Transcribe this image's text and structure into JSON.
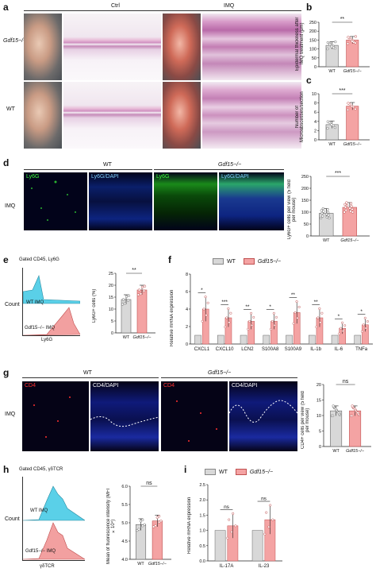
{
  "panels": {
    "a": {
      "label": "a",
      "ctrl": "Ctrl",
      "imq": "IMQ",
      "row1": "Gdf15−/−",
      "row2": "WT"
    },
    "b": {
      "label": "b",
      "ylabel": "Epidermal thickness after IMQ treatment (μm)",
      "sig": "**",
      "x1": "WT",
      "x2": "Gdf15−/−",
      "ticks": [
        "0",
        "50",
        "100",
        "150",
        "200",
        "250"
      ]
    },
    "c": {
      "label": "c",
      "ylabel": "Number of Microabscesses/section",
      "sig": "***",
      "x1": "WT",
      "x2": "Gdf15−/−",
      "ticks": [
        "0",
        "2",
        "4",
        "6",
        "8",
        "10"
      ]
    },
    "d": {
      "label": "d",
      "wt": "WT",
      "ko": "Gdf15−/−",
      "row": "IMQ",
      "stain1": "Ly6G",
      "stain2": "Ly6G/DAPI",
      "ylabel": "Ly6G+ cells per view (5 field per mouse)",
      "sig": "***",
      "x1": "WT",
      "x2": "Gdf15−/−",
      "ticks": [
        "0",
        "50",
        "100",
        "150",
        "200",
        "250"
      ]
    },
    "e": {
      "label": "e",
      "gate": "Gated CD45, Ly6G",
      "count": "Count",
      "wt": "WT IMQ",
      "ko": "Gdf15−/− IMQ",
      "xaxis": "Ly6G",
      "ylabel": "Ly6G+ cells (%)",
      "sig": "**",
      "x1": "WT",
      "x2": "Gdf15−/−",
      "ticks": [
        "0",
        "5",
        "10",
        "15",
        "20",
        "25"
      ]
    },
    "f": {
      "label": "f",
      "legend_wt": "WT",
      "legend_ko": "Gdf15−/−",
      "ylabel": "Relative mRNA expression",
      "ticks": [
        "0",
        "2",
        "4",
        "6",
        "8"
      ],
      "genes": [
        "CXCL1",
        "CXCL10",
        "LCN2",
        "S100A8",
        "S100A9",
        "IL-1b",
        "IL-6",
        "TNFa"
      ],
      "sigs": [
        "*",
        "***",
        "**",
        "*",
        "**",
        "**",
        "*",
        "*"
      ]
    },
    "g": {
      "label": "g",
      "wt": "WT",
      "ko": "Gdf15−/−",
      "row": "IMQ",
      "stain1": "CD4",
      "stain2": "CD4/DAPI",
      "ylabel": "CD4+ cells per view (5 field per mouse)",
      "sig": "ns",
      "x1": "WT",
      "x2": "Gdf15−/−",
      "ticks": [
        "0",
        "5",
        "10",
        "15",
        "20"
      ]
    },
    "h": {
      "label": "h",
      "gate": "Gated CD45, γδTCR",
      "count": "Count",
      "wt": "WT IMQ",
      "ko": "Gdf15−/− IMQ",
      "xaxis": "γδTCR",
      "ylabel": "Mean of fluorescence intensity (MFI ×10⁴)",
      "sig": "ns",
      "x1": "WT",
      "x2": "Gdf15−/−",
      "ticks": [
        "4.0",
        "4.5",
        "5.0",
        "5.5",
        "6.0"
      ]
    },
    "i": {
      "label": "i",
      "legend_wt": "WT",
      "legend_ko": "Gdf15−/−",
      "ylabel": "Relative mRNA expression",
      "genes": [
        "IL-17A",
        "IL-23"
      ],
      "sigs": [
        "ns",
        "ns"
      ],
      "ticks": [
        "0.0",
        "0.5",
        "1.0",
        "1.5",
        "2.0",
        "2.5"
      ]
    }
  },
  "colors": {
    "wt": "#d8d8d8",
    "ko": "#f4a3a3",
    "ko_dark": "#e06060",
    "wt_hist": "#5ad0e8",
    "ko_hist": "#f2a0a0"
  },
  "chart_data": [
    {
      "type": "bar",
      "panel": "b",
      "categories": [
        "WT",
        "Gdf15−/−"
      ],
      "values": [
        120,
        150
      ],
      "ylim": [
        0,
        250
      ]
    },
    {
      "type": "bar",
      "panel": "c",
      "categories": [
        "WT",
        "Gdf15−/−"
      ],
      "values": [
        3.3,
        7.3
      ],
      "ylim": [
        0,
        10
      ]
    },
    {
      "type": "bar",
      "panel": "d",
      "categories": [
        "WT",
        "Gdf15−/−"
      ],
      "values": [
        95,
        120
      ],
      "ylim": [
        0,
        250
      ]
    },
    {
      "type": "bar",
      "panel": "e",
      "categories": [
        "WT",
        "Gdf15−/−"
      ],
      "values": [
        14,
        18
      ],
      "ylim": [
        0,
        25
      ]
    },
    {
      "type": "bar",
      "panel": "f",
      "categories": [
        "CXCL1",
        "CXCL10",
        "LCN2",
        "S100A8",
        "S100A9",
        "IL-1b",
        "IL-6",
        "TNFa"
      ],
      "series": [
        {
          "name": "WT",
          "values": [
            1,
            1,
            1,
            1,
            1,
            1,
            1,
            1
          ]
        },
        {
          "name": "Gdf15−/−",
          "values": [
            4,
            3,
            2.6,
            2.6,
            3.6,
            3,
            1.8,
            2.2
          ]
        }
      ],
      "ylim": [
        0,
        8
      ]
    },
    {
      "type": "bar",
      "panel": "g",
      "categories": [
        "WT",
        "Gdf15−/−"
      ],
      "values": [
        11.5,
        11.5
      ],
      "ylim": [
        0,
        20
      ]
    },
    {
      "type": "bar",
      "panel": "h",
      "categories": [
        "WT",
        "Gdf15−/−"
      ],
      "values": [
        4.95,
        5.05
      ],
      "ylim": [
        4.0,
        6.0
      ]
    },
    {
      "type": "bar",
      "panel": "i",
      "categories": [
        "IL-17A",
        "IL-23"
      ],
      "series": [
        {
          "name": "WT",
          "values": [
            1,
            1
          ]
        },
        {
          "name": "Gdf15−/−",
          "values": [
            1.15,
            1.35
          ]
        }
      ],
      "ylim": [
        0,
        2.5
      ]
    }
  ]
}
